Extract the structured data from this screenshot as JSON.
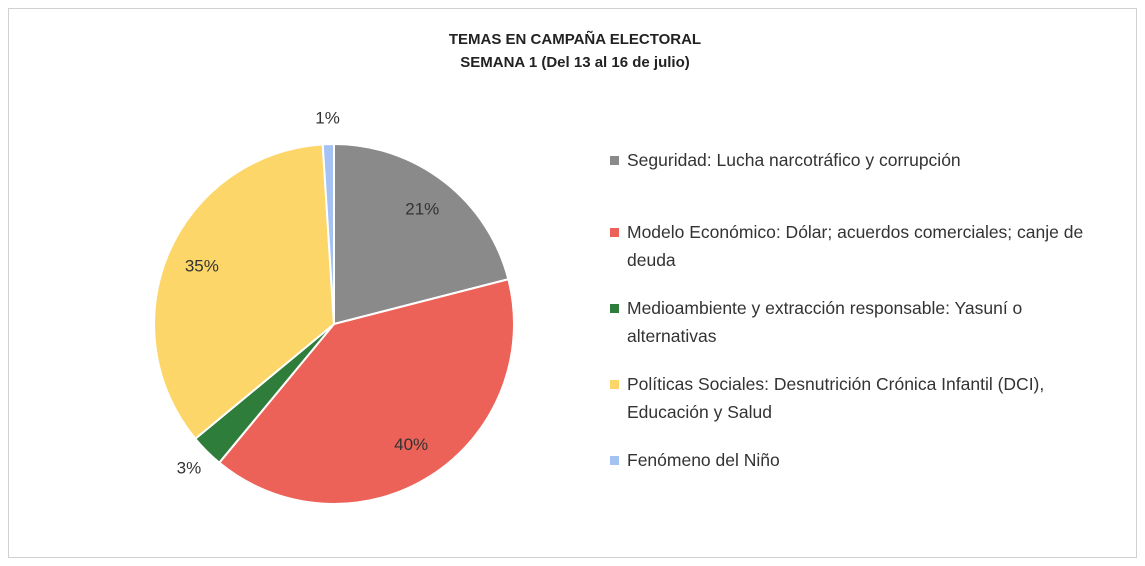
{
  "chart_data": {
    "type": "pie",
    "title": "TEMAS EN CAMPAÑA ELECTORAL",
    "subtitle": "SEMANA 1 (Del 13 al 16 de julio)",
    "categories": [
      "Seguridad: Lucha narcotráfico y corrupción",
      "Modelo Económico: Dólar; acuerdos comerciales; canje de deuda",
      "Medioambiente y extracción responsable: Yasuní o alternativas",
      "Políticas Sociales: Desnutrición Crónica Infantil (DCI), Educación y Salud",
      "Fenómeno del Niño"
    ],
    "values": [
      21,
      40,
      3,
      35,
      1
    ],
    "value_labels": [
      "21%",
      "40%",
      "3%",
      "35%",
      "1%"
    ],
    "colors": [
      "#8a8a8a",
      "#ec6258",
      "#2e7d3a",
      "#fdd66a",
      "#a4c2f4"
    ],
    "legend": "right"
  }
}
